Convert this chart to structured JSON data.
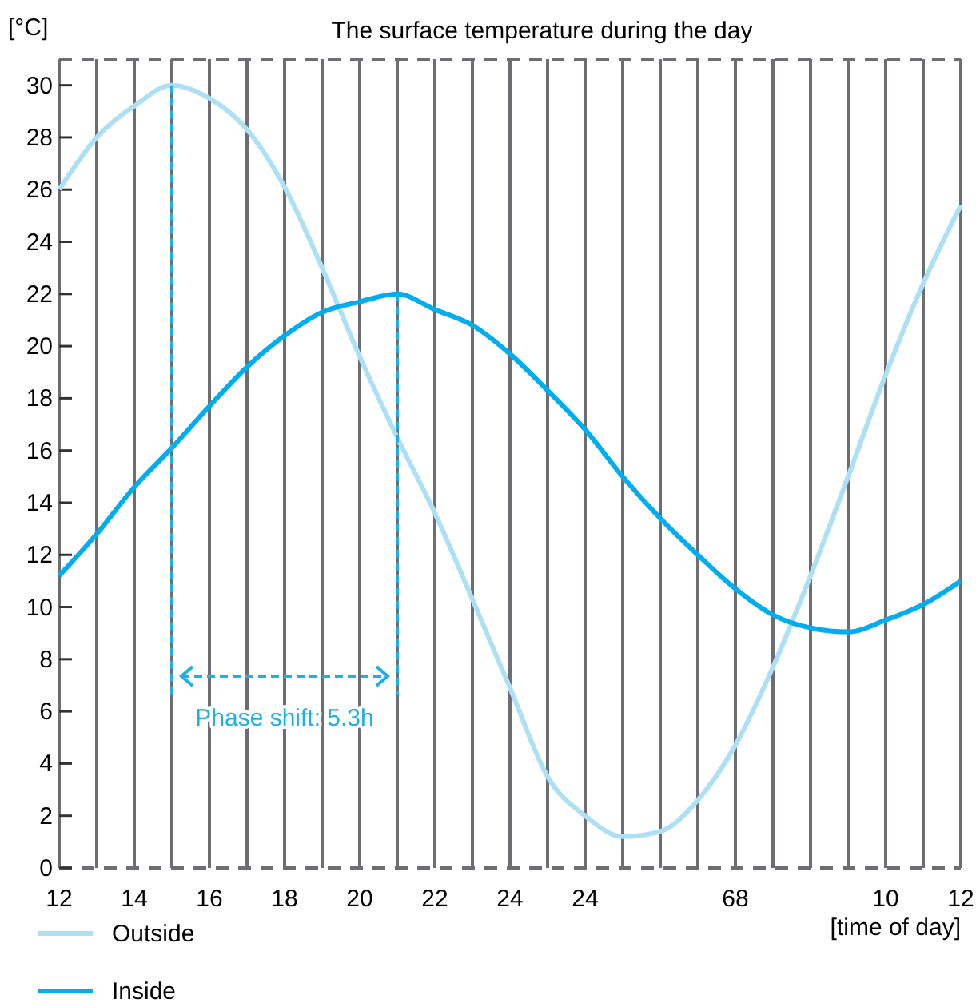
{
  "chart_data": {
    "type": "line",
    "title": "The surface temperature during the day",
    "xlabel": "[time of day]",
    "ylabel": "[°C]",
    "categories": [
      "12",
      null,
      "14",
      null,
      "16",
      null,
      "18",
      null,
      "20",
      null,
      "22",
      null,
      "24",
      null,
      "24",
      null,
      null,
      null,
      "68",
      null,
      null,
      null,
      "10",
      null,
      "12"
    ],
    "series": [
      {
        "name": "Outside",
        "color": "#aee0f5",
        "values": [
          26,
          28,
          29.2,
          30,
          29.5,
          28.3,
          26.1,
          23,
          19.6,
          16.5,
          13.6,
          10.3,
          6.9,
          3.5,
          2,
          1.2,
          1.4,
          2.6,
          4.7,
          7.7,
          11.2,
          15,
          18.9,
          22.4,
          25.4
        ]
      },
      {
        "name": "Inside",
        "color": "#00adef",
        "values": [
          11.2,
          12.8,
          14.6,
          16.1,
          17.7,
          19.2,
          20.4,
          21.3,
          21.7,
          22,
          21.4,
          20.8,
          19.7,
          18.3,
          16.8,
          15,
          13.4,
          12,
          10.7,
          9.7,
          9.2,
          9.05,
          9.5,
          10.1,
          11
        ]
      }
    ],
    "ylim": [
      0,
      31
    ],
    "yticks": [
      0,
      2,
      4,
      6,
      8,
      10,
      12,
      14,
      16,
      18,
      20,
      22,
      24,
      26,
      28,
      30
    ],
    "grid": "x",
    "legend": "bottom left",
    "marker": "none",
    "line_style": "solid",
    "annotations": [
      "Phase shift: 5.3h"
    ]
  }
}
